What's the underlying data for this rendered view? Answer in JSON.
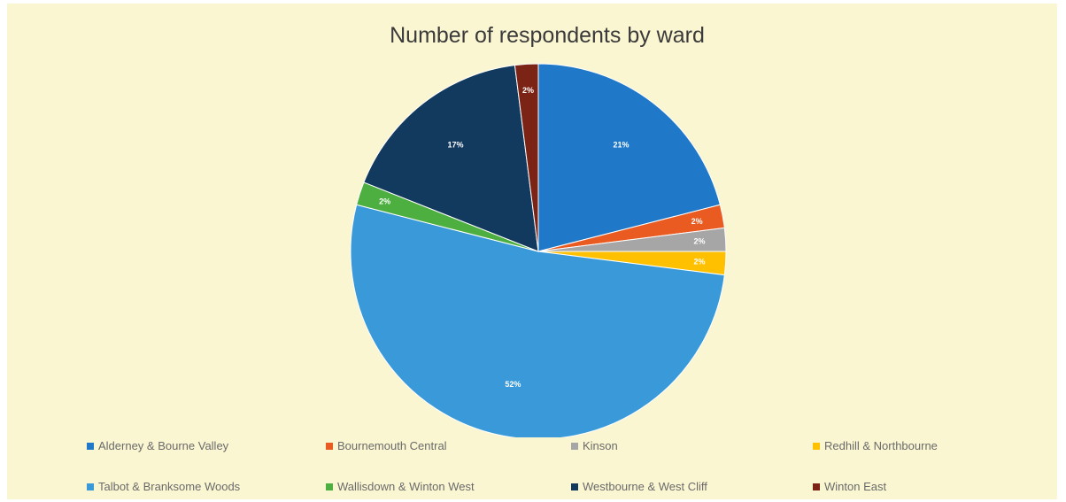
{
  "chart_data": {
    "type": "pie",
    "title": "Number of respondents by ward",
    "legend_position": "bottom",
    "categories": [
      "Alderney & Bourne Valley",
      "Bournemouth Central",
      "Kinson",
      "Redhill & Northbourne",
      "Talbot & Branksome Woods",
      "Wallisdown & Winton West",
      "Westbourne & West Cliff",
      "Winton East"
    ],
    "values": [
      21,
      2,
      2,
      2,
      52,
      2,
      17,
      2
    ],
    "data_labels": [
      "21%",
      "2%",
      "2%",
      "2%",
      "52%",
      "2%",
      "17%",
      "2%"
    ],
    "colors": [
      "#1f78c8",
      "#ea5b22",
      "#a6a6a6",
      "#ffc000",
      "#3a9ad9",
      "#4caf3f",
      "#12395e",
      "#7b2315"
    ]
  }
}
